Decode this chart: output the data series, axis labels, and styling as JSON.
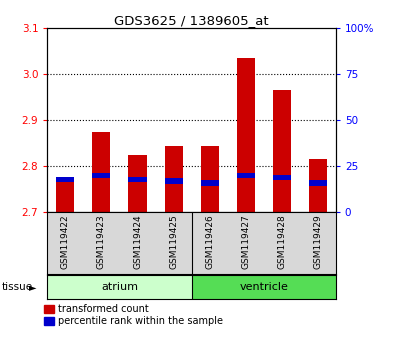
{
  "title": "GDS3625 / 1389605_at",
  "samples": [
    "GSM119422",
    "GSM119423",
    "GSM119424",
    "GSM119425",
    "GSM119426",
    "GSM119427",
    "GSM119428",
    "GSM119429"
  ],
  "transformed_counts": [
    2.775,
    2.875,
    2.825,
    2.845,
    2.845,
    3.035,
    2.965,
    2.815
  ],
  "percentile_ranks": [
    18,
    20,
    18,
    17,
    16,
    20,
    19,
    16
  ],
  "ylim_left": [
    2.7,
    3.1
  ],
  "ylim_right": [
    0,
    100
  ],
  "yticks_left": [
    2.7,
    2.8,
    2.9,
    3.0,
    3.1
  ],
  "yticks_right": [
    0,
    25,
    50,
    75,
    100
  ],
  "ytick_labels_right": [
    "0",
    "25",
    "50",
    "75",
    "100%"
  ],
  "bar_base": 2.7,
  "bar_width": 0.5,
  "red_color": "#cc0000",
  "blue_color": "#0000cc",
  "atrium_color": "#ccffcc",
  "ventricle_color": "#55dd55",
  "tissue_label": "tissue",
  "legend_red": "transformed count",
  "legend_blue": "percentile rank within the sample",
  "bg_color": "#d8d8d8",
  "grid_ticks": [
    2.8,
    2.9,
    3.0
  ]
}
